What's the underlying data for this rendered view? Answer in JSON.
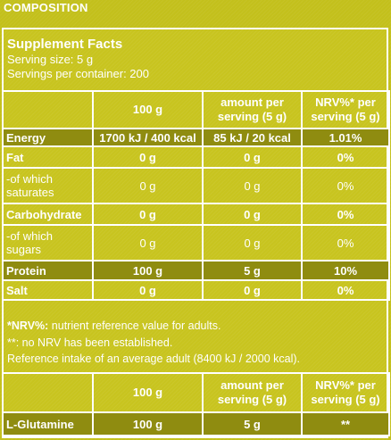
{
  "section": {
    "title": "COMPOSITION"
  },
  "facts": {
    "title": "Supplement Facts",
    "serving_size": "Serving size: 5 g",
    "servings_per_container": "Servings per container: 200"
  },
  "table1": {
    "headers": [
      "",
      "100 g",
      "amount per serving (5 g)",
      "NRV%* per serving (5 g)"
    ],
    "header_lines": {
      "col2_line1": "amount per",
      "col2_line2": "serving (5 g)",
      "col3_line1": "NRV%* per",
      "col3_line2": "serving (5 g)"
    },
    "rows": [
      {
        "label_line1": "Energy",
        "label_line2": "",
        "per100": "1700 kJ / 400 kcal",
        "serving": "85 kJ / 20 kcal",
        "nrv": "1.01%"
      },
      {
        "label_line1": "Fat",
        "label_line2": "",
        "per100": "0 g",
        "serving": "0 g",
        "nrv": "0%"
      },
      {
        "label_line1": "-of which",
        "label_line2": "saturates",
        "per100": "0 g",
        "serving": "0 g",
        "nrv": "0%"
      },
      {
        "label_line1": "Carbohydrate",
        "label_line2": "",
        "per100": "0 g",
        "serving": "0 g",
        "nrv": "0%"
      },
      {
        "label_line1": "-of which",
        "label_line2": "sugars",
        "per100": "0 g",
        "serving": "0 g",
        "nrv": "0%"
      },
      {
        "label_line1": "Protein",
        "label_line2": "",
        "per100": "100 g",
        "serving": "5 g",
        "nrv": "10%"
      },
      {
        "label_line1": "Salt",
        "label_line2": "",
        "per100": "0 g",
        "serving": "0 g",
        "nrv": "0%"
      }
    ]
  },
  "notes": {
    "nrv_term": "*NRV%:",
    "nrv_def": " nutrient reference value for adults.",
    "no_nrv": "**: no NRV has been established.",
    "reference_intake": "Reference intake of an average adult (8400 kJ / 2000 kcal)."
  },
  "table2": {
    "header_lines": {
      "col1": "100 g",
      "col2_line1": "amount per",
      "col2_line2": "serving (5 g)",
      "col3_line1": "NRV%* per",
      "col3_line2": "serving (5 g)"
    },
    "rows": [
      {
        "label": "L-Glutamine",
        "per100": "100 g",
        "serving": "5 g",
        "nrv": "**"
      }
    ]
  },
  "colors": {
    "background": "#c3c01c",
    "highlight_row": "#8f8c10",
    "text": "#ffffff",
    "border": "#ffffff"
  }
}
